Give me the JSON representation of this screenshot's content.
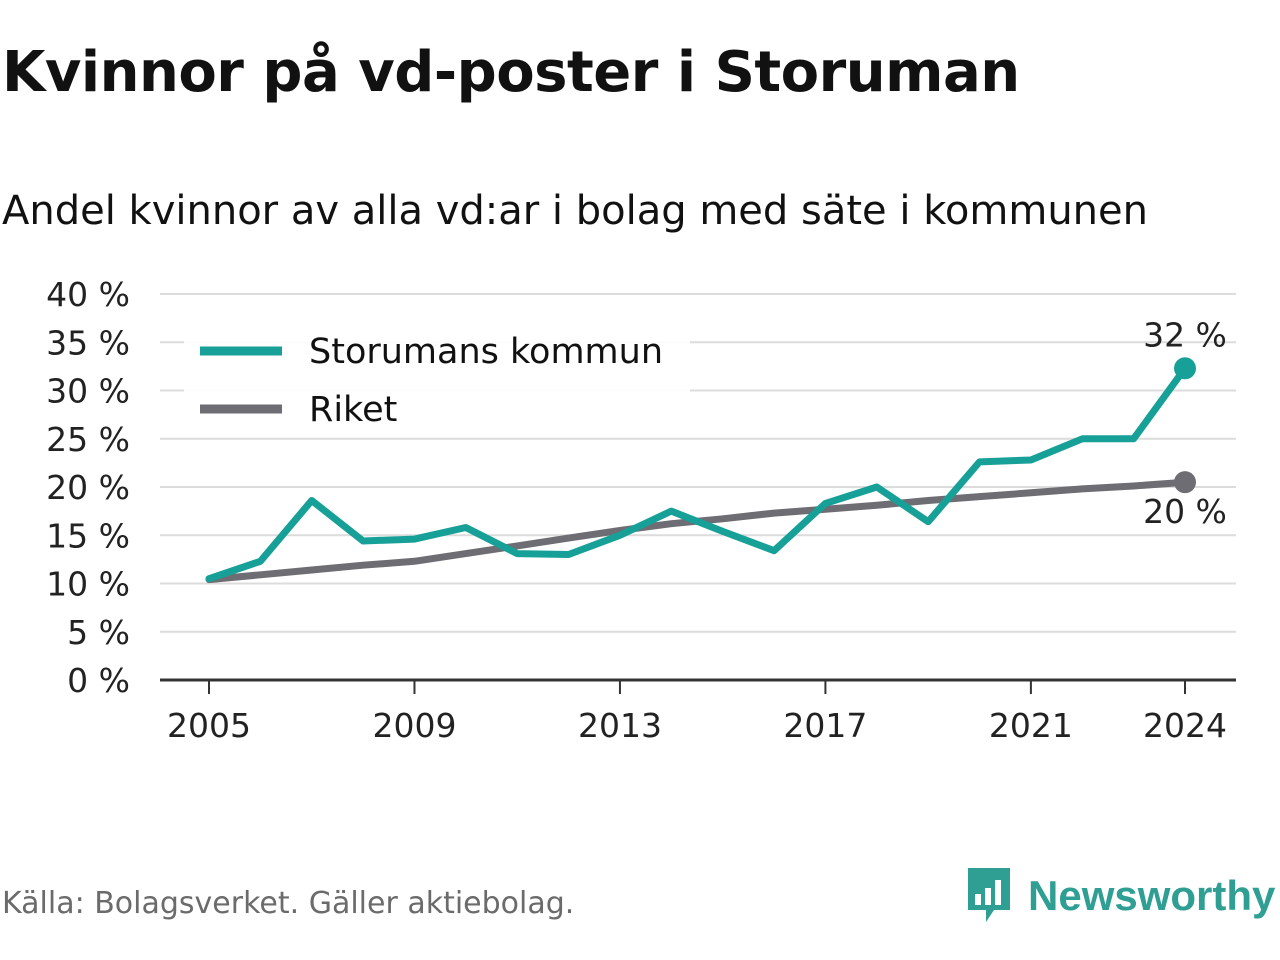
{
  "title": "Kvinnor på vd-poster i Storuman",
  "subtitle": "Andel kvinnor av alla vd:ar i bolag med säte i kommunen",
  "source": "Källa: Bolagsverket. Gäller aktiebolag.",
  "brand": {
    "name": "Newsworthy",
    "icon": "newsworthy-logo-icon",
    "color": "#2f9e93"
  },
  "chart_data": {
    "type": "line",
    "x": [
      2005,
      2006,
      2007,
      2008,
      2009,
      2010,
      2011,
      2012,
      2013,
      2014,
      2015,
      2016,
      2017,
      2018,
      2019,
      2020,
      2021,
      2022,
      2023,
      2024
    ],
    "xticks": [
      2005,
      2009,
      2013,
      2017,
      2021,
      2024
    ],
    "xtick_labels": [
      "2005",
      "2009",
      "2013",
      "2017",
      "2021",
      "2024"
    ],
    "ylim": [
      0,
      40
    ],
    "yticks": [
      0,
      5,
      10,
      15,
      20,
      25,
      30,
      35,
      40
    ],
    "ytick_labels": [
      "0 %",
      "5 %",
      "10 %",
      "15 %",
      "20 %",
      "25 %",
      "30 %",
      "35 %",
      "40 %"
    ],
    "grid": true,
    "legend_position": "top-left",
    "series": [
      {
        "name": "Storumans kommun",
        "color": "#17a097",
        "values": [
          10.5,
          12.3,
          18.6,
          14.4,
          14.6,
          15.8,
          13.1,
          13.0,
          15.0,
          17.5,
          15.4,
          13.4,
          18.3,
          20.0,
          16.4,
          22.6,
          22.8,
          25.0,
          25.0,
          32.3
        ],
        "end_label": "32 %"
      },
      {
        "name": "Riket",
        "color": "#6e6d73",
        "values": [
          10.4,
          10.9,
          11.4,
          11.9,
          12.3,
          13.1,
          13.9,
          14.7,
          15.5,
          16.2,
          16.7,
          17.3,
          17.7,
          18.1,
          18.6,
          19.0,
          19.4,
          19.8,
          20.1,
          20.5
        ],
        "end_label": "20 %"
      }
    ]
  }
}
